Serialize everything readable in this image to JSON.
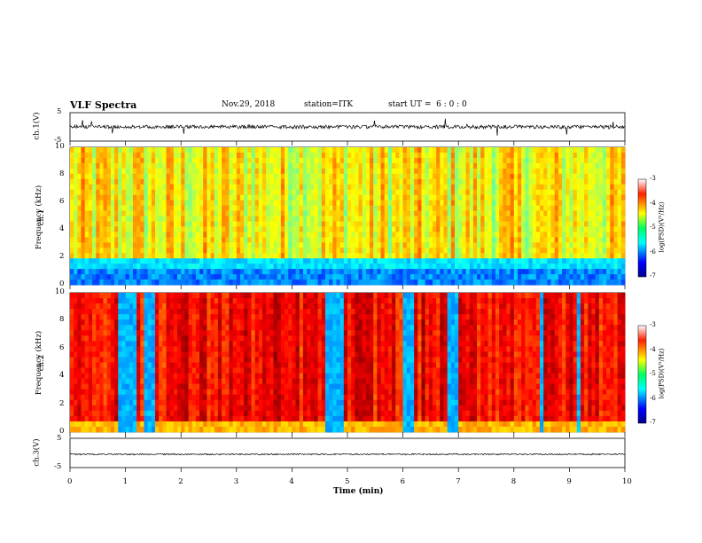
{
  "header": {
    "title": "VLF Spectra",
    "date": "Nov.29, 2018",
    "station": "station=ITK",
    "start": "start UT =  6 : 0 : 0"
  },
  "chart_data": [
    {
      "type": "line",
      "panel": "ch1-waveform",
      "ylabel": "ch.1(V)",
      "ylim": [
        -5,
        5
      ],
      "yticks": [
        "5",
        "-5"
      ],
      "x_units": "min",
      "xlim": [
        0,
        10
      ]
    },
    {
      "type": "heatmap",
      "panel": "ch1-spectrogram",
      "ylabel": "Frequency (kHz)",
      "channel_label": "ch.1",
      "ylim": [
        0,
        10
      ],
      "yticks": [
        "10",
        "8",
        "6",
        "4",
        "2",
        "0"
      ],
      "colorbar": {
        "label": "log(PSD)(V²/Hz)",
        "range": [
          -7,
          -3
        ],
        "ticks": [
          "-3",
          "-4",
          "-5",
          "-6",
          "-7"
        ]
      }
    },
    {
      "type": "heatmap",
      "panel": "ch2-spectrogram",
      "ylabel": "Frequency (kHz)",
      "channel_label": "ch.2",
      "ylim": [
        0,
        10
      ],
      "yticks": [
        "10",
        "8",
        "6",
        "4",
        "2",
        "0"
      ],
      "colorbar": {
        "label": "log(PSD)(V²/Hz)",
        "range": [
          -7,
          -3
        ],
        "ticks": [
          "-3",
          "-4",
          "-5",
          "-6",
          "-7"
        ]
      }
    },
    {
      "type": "line",
      "panel": "ch3-waveform",
      "ylabel": "ch.3(V)",
      "ylim": [
        -5,
        5
      ],
      "yticks": [
        "5",
        "-5"
      ]
    }
  ],
  "xaxis": {
    "label": "Time (min)",
    "ticks": [
      "0",
      "1",
      "2",
      "3",
      "4",
      "5",
      "6",
      "7",
      "8",
      "9",
      "10"
    ]
  }
}
